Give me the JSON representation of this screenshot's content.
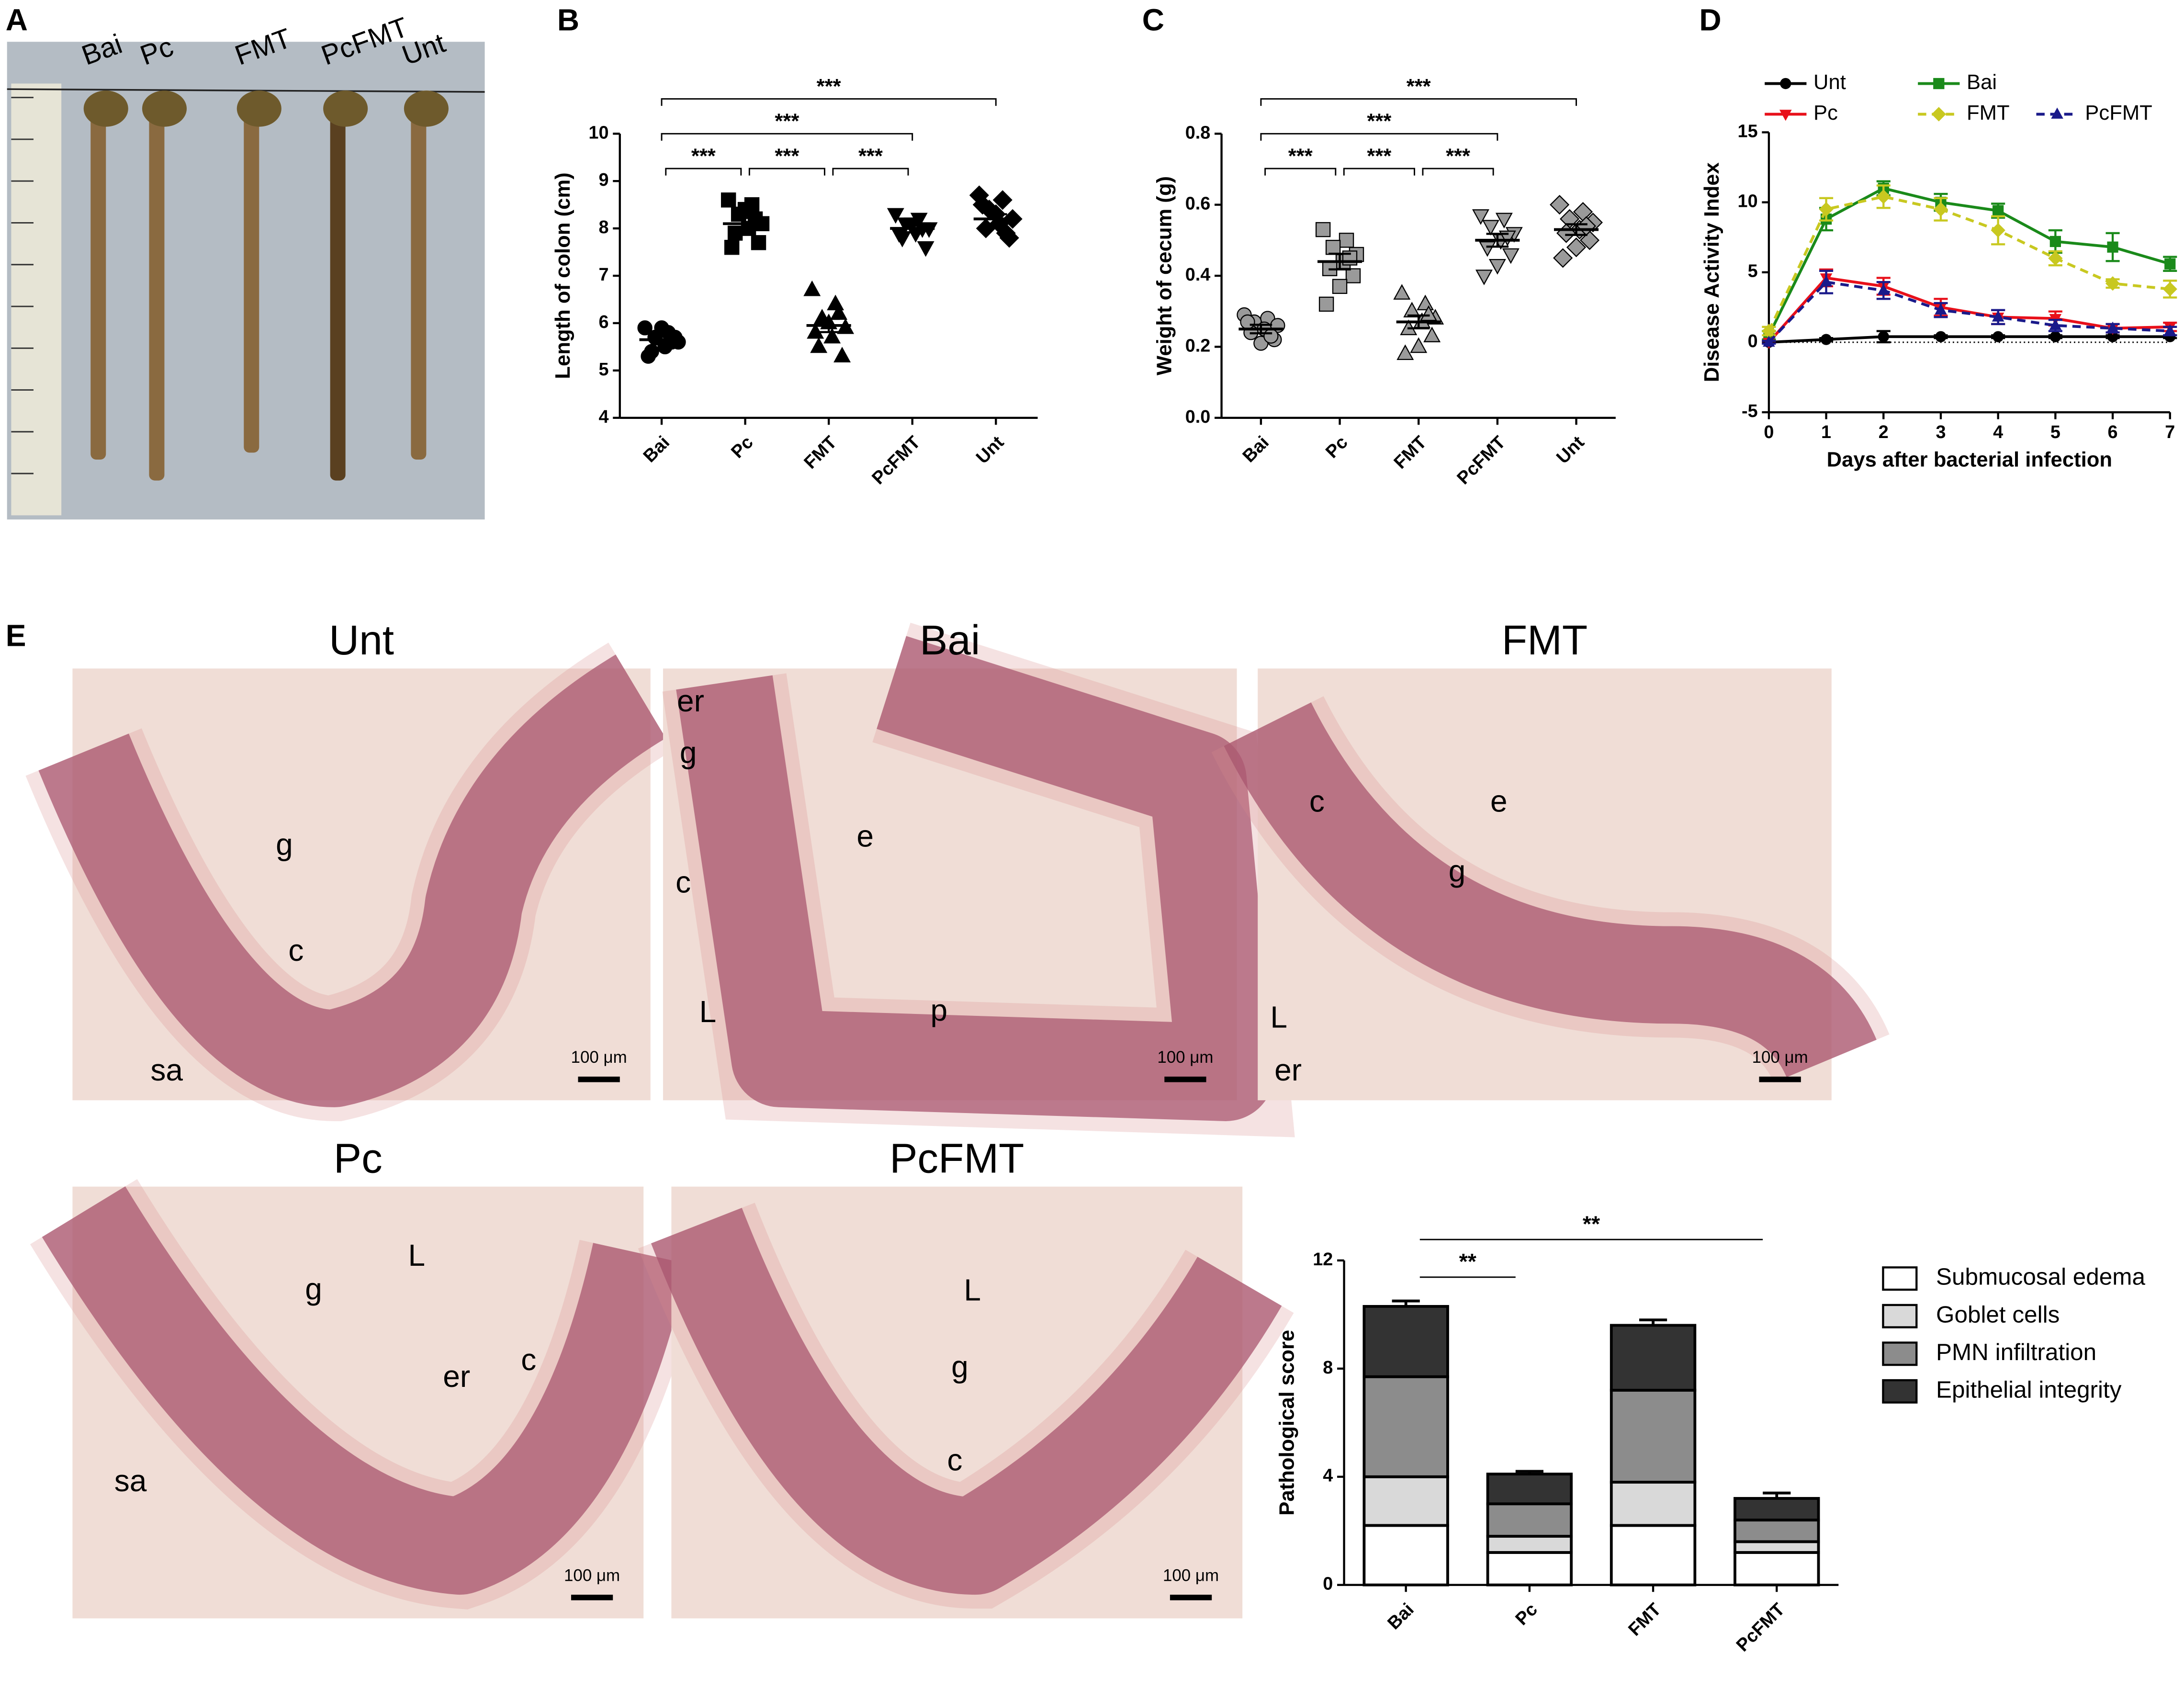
{
  "photos": {
    "panel": "A",
    "labels": [
      "Bai",
      "Pc",
      "FMT",
      "PcFMT",
      "Unt"
    ]
  },
  "chart_data": [
    {
      "type": "dotplot",
      "panel": "B",
      "y_label": "Length of colon (cm)",
      "categories": [
        "Bai",
        "Pc",
        "FMT",
        "PcFMT",
        "Unt"
      ],
      "markers": [
        "circle",
        "square",
        "triangle",
        "triangle-down",
        "diamond"
      ],
      "marker_color": "#000000",
      "values": [
        [
          5.9,
          5.8,
          5.7,
          5.6,
          5.5,
          5.4,
          5.7,
          5.9,
          5.3,
          5.6
        ],
        [
          8.6,
          8.5,
          8.3,
          8.1,
          8.0,
          7.9,
          7.7,
          8.4,
          7.6,
          8.2
        ],
        [
          6.7,
          6.4,
          6.1,
          5.9,
          5.7,
          5.5,
          5.3,
          6.0,
          5.8,
          6.2
        ],
        [
          8.3,
          8.2,
          8.1,
          8.0,
          7.9,
          7.8,
          7.6,
          8.1,
          7.9,
          8.0
        ],
        [
          8.7,
          8.6,
          8.4,
          8.2,
          8.1,
          8.0,
          7.8,
          8.3,
          8.5,
          7.9
        ]
      ],
      "means": [
        5.65,
        8.1,
        5.95,
        8.0,
        8.2
      ],
      "errors": [
        0.1,
        0.12,
        0.14,
        0.08,
        0.1
      ],
      "ylim": [
        4,
        10
      ],
      "yticks": [
        4,
        5,
        6,
        7,
        8,
        9,
        10
      ],
      "brackets": [
        {
          "label": "***",
          "span": [
            0,
            4
          ]
        },
        {
          "label": "***",
          "span": [
            0,
            3
          ]
        },
        {
          "label": "***",
          "span": [
            0,
            1
          ]
        },
        {
          "label": "***",
          "span": [
            1,
            2
          ]
        },
        {
          "label": "***",
          "span": [
            2,
            3
          ]
        }
      ]
    },
    {
      "type": "dotplot",
      "panel": "C",
      "y_label": "Weight of cecum (g)",
      "categories": [
        "Bai",
        "Pc",
        "FMT",
        "PcFMT",
        "Unt"
      ],
      "markers": [
        "circle",
        "square",
        "triangle",
        "triangle-down",
        "diamond"
      ],
      "marker_color": "#9a9a9a",
      "values": [
        [
          0.29,
          0.28,
          0.27,
          0.26,
          0.25,
          0.24,
          0.22,
          0.21,
          0.27,
          0.23
        ],
        [
          0.53,
          0.5,
          0.48,
          0.46,
          0.44,
          0.42,
          0.4,
          0.37,
          0.32,
          0.45
        ],
        [
          0.35,
          0.32,
          0.3,
          0.28,
          0.27,
          0.25,
          0.23,
          0.2,
          0.18,
          0.29
        ],
        [
          0.57,
          0.56,
          0.54,
          0.52,
          0.5,
          0.48,
          0.46,
          0.43,
          0.4,
          0.51
        ],
        [
          0.6,
          0.58,
          0.56,
          0.55,
          0.53,
          0.52,
          0.5,
          0.48,
          0.45,
          0.54
        ]
      ],
      "means": [
        0.25,
        0.44,
        0.27,
        0.5,
        0.53
      ],
      "errors": [
        0.012,
        0.022,
        0.018,
        0.018,
        0.015
      ],
      "ylim": [
        0,
        0.8
      ],
      "yticks": [
        {
          "value": 0,
          "label": "0.0"
        },
        0.2,
        0.4,
        0.6,
        0.8
      ],
      "brackets": [
        {
          "label": "***",
          "span": [
            0,
            4
          ]
        },
        {
          "label": "***",
          "span": [
            0,
            3
          ]
        },
        {
          "label": "***",
          "span": [
            0,
            1
          ]
        },
        {
          "label": "***",
          "span": [
            1,
            2
          ]
        },
        {
          "label": "***",
          "span": [
            2,
            3
          ]
        }
      ]
    },
    {
      "type": "line",
      "panel": "D",
      "x_label": "Days after bacterial infection",
      "y_label": "Disease Activity Index",
      "x": [
        0,
        1,
        2,
        3,
        4,
        5,
        6,
        7
      ],
      "xlim": [
        0,
        7
      ],
      "xticks": [
        0,
        1,
        2,
        3,
        4,
        5,
        6,
        7
      ],
      "ylim": [
        -5,
        15
      ],
      "yticks": [
        -5,
        0,
        5,
        10,
        15
      ],
      "baseline": 0,
      "series": [
        {
          "name": "Unt",
          "color": "#000000",
          "marker": "circle",
          "line_style": "solid",
          "values": [
            0,
            0.2,
            0.4,
            0.4,
            0.4,
            0.4,
            0.4,
            0.4
          ],
          "errors": [
            0.1,
            0.1,
            0.4,
            0.1,
            0.1,
            0.1,
            0.1,
            0.1
          ]
        },
        {
          "name": "Bai",
          "color": "#1a8a1a",
          "marker": "square",
          "line_style": "solid",
          "values": [
            0.5,
            8.8,
            11,
            10,
            9.4,
            7.2,
            6.8,
            5.6
          ],
          "errors": [
            0.3,
            0.8,
            0.5,
            0.6,
            0.5,
            0.8,
            1.0,
            0.5
          ]
        },
        {
          "name": "Pc",
          "color": "#e8101a",
          "marker": "triangle-down",
          "line_style": "solid",
          "values": [
            0,
            4.6,
            4,
            2.5,
            1.8,
            1.7,
            1.0,
            1.1
          ],
          "errors": [
            0.1,
            0.6,
            0.6,
            0.6,
            0.5,
            0.5,
            0.3,
            0.3
          ]
        },
        {
          "name": "FMT",
          "color": "#c8c820",
          "marker": "diamond",
          "line_style": "dashed",
          "values": [
            0.8,
            9.5,
            10.4,
            9.5,
            8.0,
            6.0,
            4.2,
            3.8
          ],
          "errors": [
            0.3,
            0.8,
            0.8,
            0.8,
            1.0,
            0.5,
            0.3,
            0.6
          ]
        },
        {
          "name": "PcFMT",
          "color": "#1a1a8a",
          "marker": "triangle",
          "line_style": "dashed",
          "values": [
            0,
            4.3,
            3.7,
            2.3,
            1.8,
            1.2,
            1.0,
            0.8
          ],
          "errors": [
            0.1,
            0.8,
            0.6,
            0.5,
            0.5,
            0.4,
            0.3,
            0.3
          ]
        }
      ]
    },
    {
      "type": "stacked-bar",
      "panel": "",
      "y_label": "Pathological score",
      "categories": [
        "Bai",
        "Pc",
        "FMT",
        "PcFMT"
      ],
      "ylim": [
        0,
        12
      ],
      "yticks": [
        0,
        4,
        8,
        12
      ],
      "series": [
        {
          "name": "Submucosal edema",
          "color": "#ffffff",
          "values": [
            2.2,
            1.2,
            2.2,
            1.2
          ],
          "errors": [
            0.3,
            0.2,
            0.3,
            0.2
          ]
        },
        {
          "name": "Goblet cells",
          "color": "#d9d9d9",
          "values": [
            1.8,
            0.6,
            1.6,
            0.4
          ],
          "errors": [
            0.15,
            0.2,
            0.15,
            0.2
          ]
        },
        {
          "name": "PMN infiltration",
          "color": "#8c8c8c",
          "values": [
            3.7,
            1.2,
            3.4,
            0.8
          ],
          "errors": [
            0.15,
            0.2,
            0.2,
            0.2
          ]
        },
        {
          "name": "Epithelial integrity",
          "color": "#333333",
          "values": [
            2.6,
            1.1,
            2.4,
            0.8
          ],
          "errors": [
            0.2,
            0.1,
            0.2,
            0.2
          ]
        }
      ],
      "brackets": [
        {
          "label": "**",
          "span": [
            0,
            1
          ]
        },
        {
          "label": "**",
          "span": [
            0,
            3
          ]
        }
      ]
    }
  ],
  "histology": {
    "panel": "E",
    "scale_bar": "100 μm",
    "images": [
      {
        "title": "Unt",
        "labels": [
          "g",
          "c",
          "sa"
        ]
      },
      {
        "title": "Bai",
        "labels": [
          "er",
          "g",
          "e",
          "c",
          "L",
          "p"
        ]
      },
      {
        "title": "FMT",
        "labels": [
          "c",
          "e",
          "g",
          "L",
          "er"
        ]
      },
      {
        "title": "Pc",
        "labels": [
          "L",
          "g",
          "er",
          "c",
          "sa"
        ]
      },
      {
        "title": "PcFMT",
        "labels": [
          "L",
          "g",
          "c"
        ]
      }
    ]
  }
}
